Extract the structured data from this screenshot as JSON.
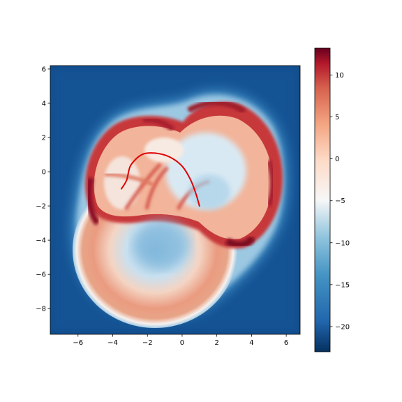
{
  "chart_data": {
    "type": "heatmap",
    "title": "",
    "xlabel": "",
    "ylabel": "",
    "xlim": [
      -7.6,
      6.8
    ],
    "ylim": [
      -9.5,
      6.2
    ],
    "x_ticks": [
      -6,
      -4,
      -2,
      0,
      2,
      4,
      6
    ],
    "y_ticks": [
      -8,
      -6,
      -4,
      -2,
      0,
      2,
      4,
      6
    ],
    "x_tick_labels": [
      "−6",
      "−4",
      "−2",
      "0",
      "2",
      "4",
      "6"
    ],
    "y_tick_labels": [
      "−8",
      "−6",
      "−4",
      "−2",
      "0",
      "2",
      "4",
      "6"
    ],
    "colormap": "RdBu_r",
    "colorbar": {
      "range": [
        -23,
        13.2
      ],
      "ticks": [
        -20,
        -15,
        -10,
        -5,
        0,
        5,
        10
      ],
      "tick_labels": [
        "−20",
        "−15",
        "−10",
        "−5",
        "0",
        "5",
        "10"
      ]
    },
    "overlay_curve": {
      "color": "#e00000",
      "points": [
        [
          -3.5,
          -1.0
        ],
        [
          -3.2,
          -0.5
        ],
        [
          -3.0,
          0.3
        ],
        [
          -2.6,
          0.8
        ],
        [
          -2.2,
          1.05
        ],
        [
          -1.8,
          1.1
        ],
        [
          -1.3,
          1.05
        ],
        [
          -0.8,
          0.9
        ],
        [
          -0.3,
          0.6
        ],
        [
          0.1,
          0.2
        ],
        [
          0.5,
          -0.5
        ],
        [
          0.8,
          -1.3
        ],
        [
          1.0,
          -2.0
        ]
      ]
    },
    "colors": {
      "low": "#053061",
      "high": "#67001f"
    }
  }
}
